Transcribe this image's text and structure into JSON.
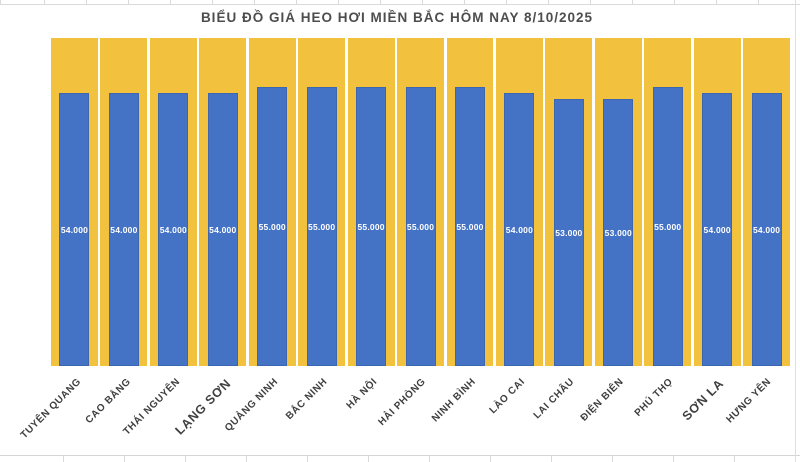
{
  "chart_data": {
    "type": "bar",
    "title": "BIỂU ĐỒ GIÁ HEO HƠI MIỀN BẮC HÔM NAY 8/10/2025",
    "categories": [
      "TUYÊN QUANG",
      "CAO BẰNG",
      "THÁI NGUYÊN",
      "LẠNG SƠN",
      "QUẢNG NINH",
      "BẮC NINH",
      "HÀ NỘI",
      "HẢI PHÒNG",
      "NINH BÌNH",
      "LÀO CAI",
      "LAI CHÂU",
      "ĐIỆN BIÊN",
      "PHÚ THỌ",
      "SƠN LA",
      "HƯNG YÊN"
    ],
    "values": [
      54000,
      54000,
      54000,
      54000,
      55000,
      55000,
      55000,
      55000,
      55000,
      54000,
      53000,
      53000,
      55000,
      54000,
      54000
    ],
    "value_labels": [
      "54.000",
      "54.000",
      "54.000",
      "54.000",
      "55.000",
      "55.000",
      "55.000",
      "55.000",
      "55.000",
      "54.000",
      "53.000",
      "53.000",
      "55.000",
      "54.000",
      "54.000"
    ],
    "xlabel": "",
    "ylabel": "",
    "ylim": [
      8500,
      63200
    ],
    "axes_hidden": true,
    "grid": false,
    "legend": "none",
    "data_label_position": "center",
    "category_label_rotation_deg": 45,
    "emphasized_category_indexes": [
      3,
      13
    ],
    "colors": {
      "bar_fill": "#4472C4",
      "background_column_fill": "#F2C23E",
      "value_label_text": "#FFFFFF",
      "category_label_text": "#3F3F3F",
      "title_text": "#4D4D4D",
      "gridline": "#D9D9D9",
      "canvas_background": "#FFFFFF"
    }
  }
}
